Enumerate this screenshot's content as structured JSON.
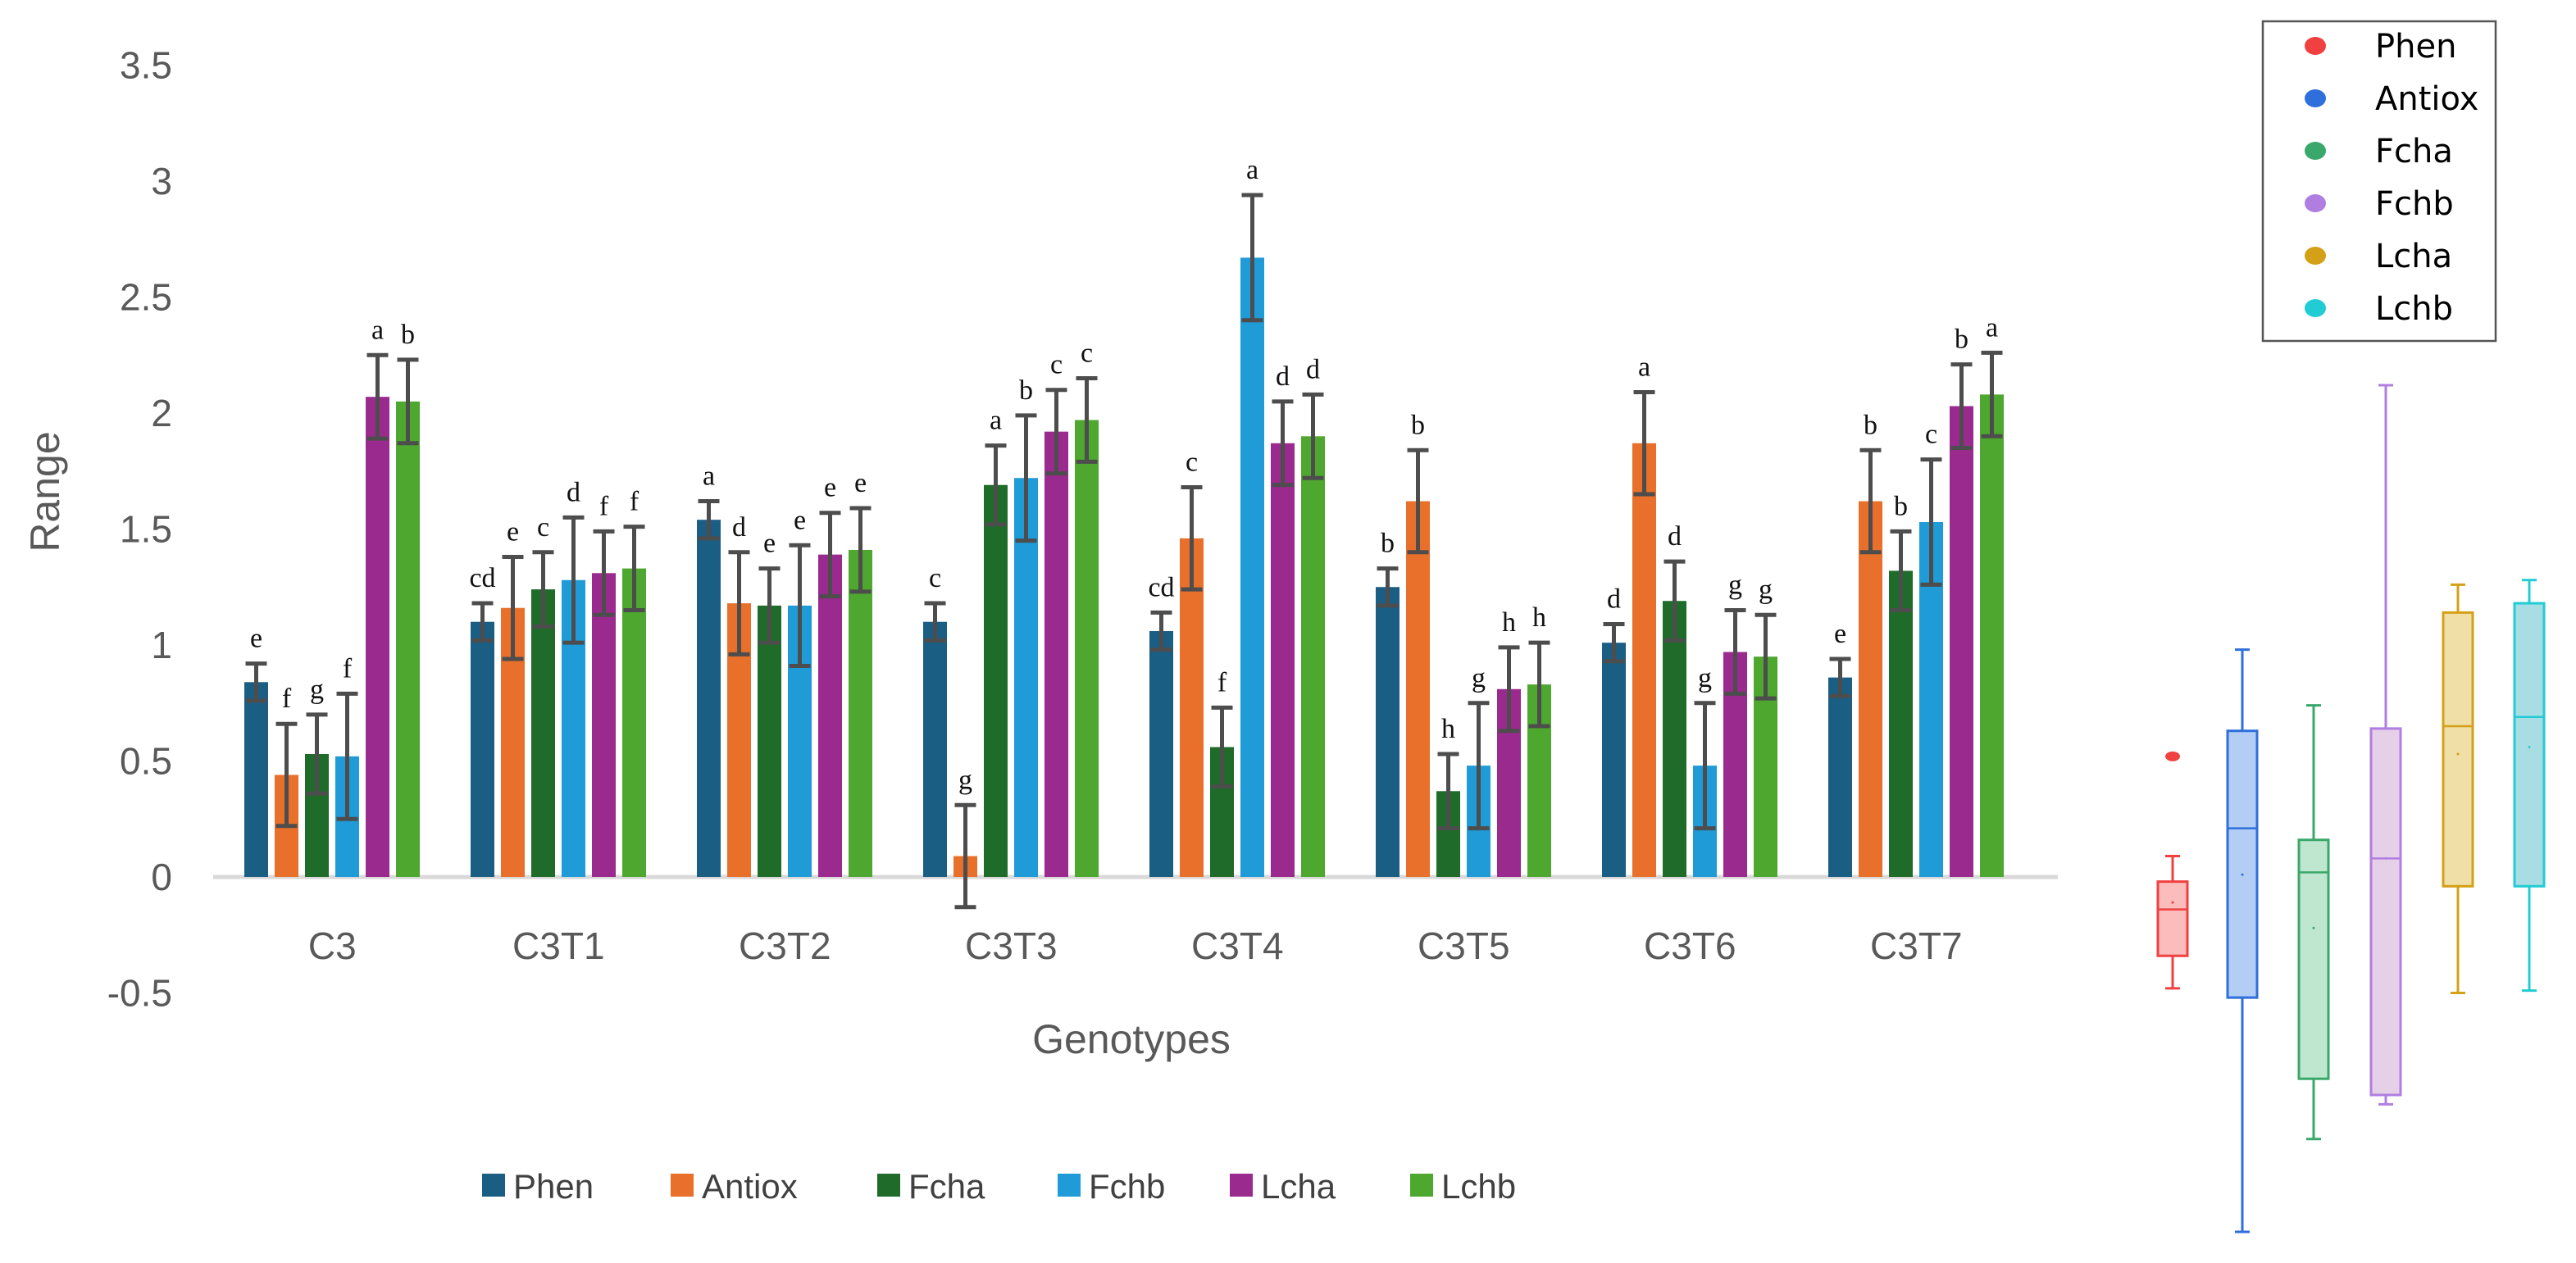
{
  "chart_data": [
    {
      "type": "bar",
      "title": "",
      "xlabel": "Genotypes",
      "ylabel": "Range",
      "ylim": [
        -0.5,
        3.5
      ],
      "yticks": [
        "-0.5",
        "0",
        "0.5",
        "1",
        "1.5",
        "2",
        "2.5",
        "3",
        "3.5"
      ],
      "ytick_values": [
        -0.5,
        0,
        0.5,
        1,
        1.5,
        2,
        2.5,
        3,
        3.5
      ],
      "grid": false,
      "legend_position": "bottom",
      "categories": [
        "C3",
        "C3T1",
        "C3T2",
        "C3T3",
        "C3T4",
        "C3T5",
        "C3T6",
        "C3T7"
      ],
      "series": [
        {
          "name": "Phen",
          "color": "#1b5e84",
          "values": [
            0.84,
            1.1,
            1.54,
            1.1,
            1.06,
            1.25,
            1.01,
            0.86
          ],
          "errors": [
            0.08,
            0.08,
            0.08,
            0.08,
            0.08,
            0.08,
            0.08,
            0.08
          ],
          "letters": [
            "e",
            "cd",
            "a",
            "c",
            "cd",
            "b",
            "d",
            "e"
          ]
        },
        {
          "name": "Antiox",
          "color": "#e8702a",
          "values": [
            0.44,
            1.16,
            1.18,
            0.09,
            1.46,
            1.62,
            1.87,
            1.62
          ],
          "errors": [
            0.22,
            0.22,
            0.22,
            0.22,
            0.22,
            0.22,
            0.22,
            0.22
          ],
          "letters": [
            "f",
            "e",
            "d",
            "g",
            "c",
            "b",
            "a",
            "b"
          ]
        },
        {
          "name": "Fcha",
          "color": "#1e6b2a",
          "values": [
            0.53,
            1.24,
            1.17,
            1.69,
            0.56,
            0.37,
            1.19,
            1.32
          ],
          "errors": [
            0.17,
            0.16,
            0.16,
            0.17,
            0.17,
            0.16,
            0.17,
            0.17
          ],
          "letters": [
            "g",
            "c",
            "e",
            "a",
            "f",
            "h",
            "d",
            "b"
          ]
        },
        {
          "name": "Fchb",
          "color": "#1f9bd7",
          "values": [
            0.52,
            1.28,
            1.17,
            1.72,
            2.67,
            0.48,
            0.48,
            1.53
          ],
          "errors": [
            0.27,
            0.27,
            0.26,
            0.27,
            0.27,
            0.27,
            0.27,
            0.27
          ],
          "letters": [
            "f",
            "d",
            "e",
            "b",
            "a",
            "g",
            "g",
            "c"
          ]
        },
        {
          "name": "Lcha",
          "color": "#9b2a8f",
          "values": [
            2.07,
            1.31,
            1.39,
            1.92,
            1.87,
            0.81,
            0.97,
            2.03
          ],
          "errors": [
            0.18,
            0.18,
            0.18,
            0.18,
            0.18,
            0.18,
            0.18,
            0.18
          ],
          "letters": [
            "a",
            "f",
            "e",
            "c",
            "d",
            "h",
            "g",
            "b"
          ]
        },
        {
          "name": "Lchb",
          "color": "#4ea72e",
          "values": [
            2.05,
            1.33,
            1.41,
            1.97,
            1.9,
            0.83,
            0.95,
            2.08
          ],
          "errors": [
            0.18,
            0.18,
            0.18,
            0.18,
            0.18,
            0.18,
            0.18,
            0.18
          ],
          "letters": [
            "b",
            "f",
            "e",
            "c",
            "d",
            "h",
            "g",
            "a"
          ]
        }
      ]
    },
    {
      "type": "boxplot",
      "ylim": [
        -0.5,
        3.5
      ],
      "legend_position": "top-right",
      "series": [
        {
          "name": "Phen",
          "color": "#f04040",
          "fill": "#fbbcbc",
          "min": -0.48,
          "q1": -0.34,
          "median": -0.14,
          "q3": -0.02,
          "max": 0.09,
          "mean": -0.11,
          "outliers": [
            0.52
          ]
        },
        {
          "name": "Antiox",
          "color": "#2f6fdc",
          "fill": "#b3cdf4",
          "min": -1.53,
          "q1": -0.52,
          "median": 0.21,
          "q3": 0.63,
          "max": 0.98,
          "mean": 0.01,
          "outliers": []
        },
        {
          "name": "Fcha",
          "color": "#3aa86a",
          "fill": "#bfe6cf",
          "min": -1.13,
          "q1": -0.87,
          "median": 0.02,
          "q3": 0.16,
          "max": 0.74,
          "mean": -0.22,
          "outliers": []
        },
        {
          "name": "Fchb",
          "color": "#b07ee0",
          "fill": "#e6d0e8",
          "min": -0.98,
          "q1": -0.94,
          "median": 0.08,
          "q3": 0.64,
          "max": 2.12,
          "mean": 0.08,
          "outliers": []
        },
        {
          "name": "Lcha",
          "color": "#d4a017",
          "fill": "#f0dfa6",
          "min": -0.5,
          "q1": -0.04,
          "median": 0.65,
          "q3": 1.14,
          "max": 1.26,
          "mean": 0.53,
          "outliers": []
        },
        {
          "name": "Lchb",
          "color": "#22ccd4",
          "fill": "#a9dde4",
          "min": -0.49,
          "q1": -0.04,
          "median": 0.69,
          "q3": 1.18,
          "max": 1.28,
          "mean": 0.56,
          "outliers": []
        }
      ]
    }
  ]
}
